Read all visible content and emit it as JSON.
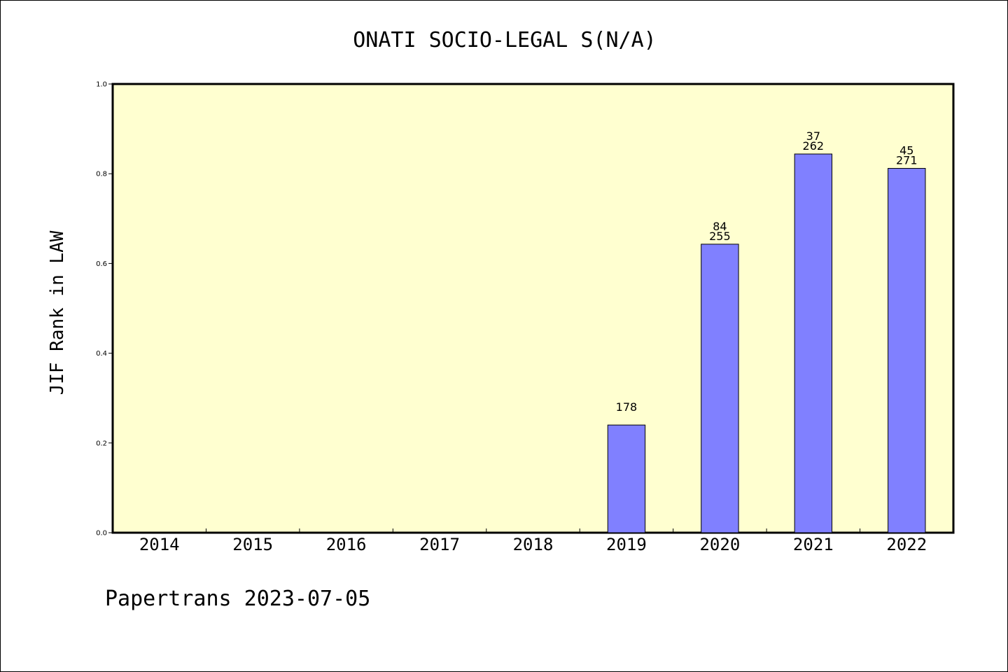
{
  "chart_data": {
    "type": "bar",
    "title": "ONATI SOCIO-LEGAL S(N/A)",
    "ylabel": "JIF Rank in LAW",
    "xlabel": "",
    "ylim": [
      0,
      1.0
    ],
    "yticks": [
      "0.0",
      "0.2",
      "0.4",
      "0.6",
      "0.8",
      "1.0"
    ],
    "categories": [
      "2014",
      "2015",
      "2016",
      "2017",
      "2018",
      "2019",
      "2020",
      "2021",
      "2022"
    ],
    "values": [
      null,
      null,
      null,
      null,
      null,
      0.24,
      0.643,
      0.844,
      0.812
    ],
    "rank_labels": [
      "",
      "",
      "",
      "",
      "",
      "",
      "84",
      "37",
      "45"
    ],
    "total_labels": [
      "",
      "",
      "",
      "",
      "",
      "178",
      "255",
      "262",
      "271"
    ],
    "grid": false,
    "colors": {
      "plot_background": "#ffffd0",
      "bar_fill": "#8080ff",
      "bar_stroke": "#000000"
    }
  },
  "footer": {
    "text": "Papertrans 2023-07-05"
  }
}
